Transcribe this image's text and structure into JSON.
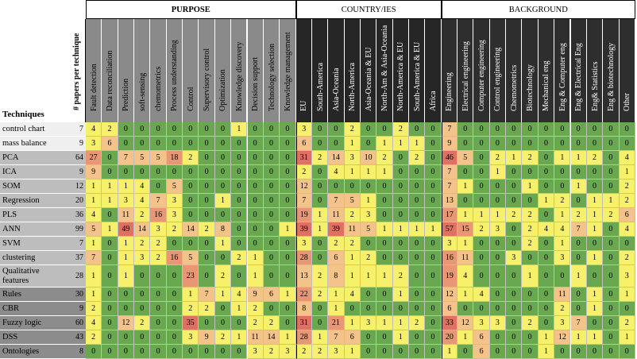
{
  "groups": [
    {
      "label": "PURPOSE",
      "bold": true
    },
    {
      "label": "COUNTRY/IES",
      "bold": false
    },
    {
      "label": "BACKGROUND",
      "bold": false
    }
  ],
  "techniques_header": "Techniques",
  "count_header": "# papers per technique",
  "columns": [
    "Fault detection",
    "Data reconciliation",
    "Prediction",
    "soft-sensing",
    "chemometrics",
    "Process understanding",
    "Control",
    "Supervisory control",
    "Optimization",
    "Knowledge discovery",
    "Decision support",
    "Technology selection",
    "Knowledge management",
    "EU",
    "South-America",
    "Asia-Oceania",
    "North-America",
    "Asia-Oceania & EU",
    "North-Am & Asia-Oceania",
    "North-America & EU",
    "South-America & EU",
    "Africa",
    "Engineering",
    "Electrical engineering",
    "Computer engineering",
    "Control engineering",
    "Chemometrics",
    "Biotechnology",
    "Mechanical eng",
    "Eng & Computer eng",
    "Eng & Electrical Eng",
    "Eng& Statistics",
    "Eng & biotechnology",
    "Other"
  ],
  "rows": [
    {
      "technique": "control chart",
      "count": 7,
      "values": [
        4,
        2,
        0,
        0,
        0,
        0,
        0,
        0,
        0,
        1,
        0,
        0,
        0,
        3,
        0,
        0,
        2,
        0,
        0,
        2,
        0,
        0,
        7,
        0,
        0,
        0,
        0,
        0,
        0,
        0,
        0,
        0,
        0,
        0
      ]
    },
    {
      "technique": "mass balance",
      "count": 9,
      "values": [
        3,
        6,
        0,
        0,
        0,
        0,
        0,
        0,
        0,
        0,
        0,
        0,
        0,
        6,
        0,
        0,
        1,
        0,
        1,
        1,
        1,
        0,
        9,
        0,
        0,
        0,
        0,
        0,
        0,
        0,
        0,
        0,
        0,
        0
      ]
    },
    {
      "technique": "PCA",
      "count": 64,
      "values": [
        27,
        0,
        7,
        5,
        5,
        18,
        2,
        0,
        0,
        0,
        0,
        0,
        0,
        31,
        2,
        14,
        3,
        10,
        2,
        0,
        2,
        0,
        46,
        5,
        0,
        2,
        1,
        2,
        0,
        1,
        1,
        2,
        0,
        4
      ]
    },
    {
      "technique": "ICA",
      "count": 9,
      "values": [
        9,
        0,
        0,
        0,
        0,
        0,
        0,
        0,
        0,
        0,
        0,
        0,
        0,
        2,
        0,
        4,
        1,
        1,
        1,
        0,
        0,
        0,
        7,
        0,
        0,
        1,
        0,
        0,
        0,
        0,
        0,
        0,
        0,
        1
      ]
    },
    {
      "technique": "SOM",
      "count": 12,
      "values": [
        1,
        1,
        1,
        4,
        0,
        5,
        0,
        0,
        0,
        0,
        0,
        0,
        0,
        12,
        0,
        0,
        0,
        0,
        0,
        0,
        0,
        0,
        7,
        1,
        0,
        0,
        0,
        1,
        0,
        0,
        1,
        0,
        0,
        2
      ]
    },
    {
      "technique": "Regression",
      "count": 20,
      "values": [
        1,
        1,
        3,
        4,
        7,
        3,
        0,
        0,
        1,
        0,
        0,
        0,
        0,
        7,
        0,
        7,
        5,
        1,
        0,
        0,
        0,
        0,
        13,
        0,
        0,
        0,
        0,
        0,
        1,
        2,
        0,
        1,
        1,
        2
      ]
    },
    {
      "technique": "PLS",
      "count": 36,
      "values": [
        4,
        0,
        11,
        2,
        16,
        3,
        0,
        0,
        0,
        0,
        0,
        0,
        0,
        19,
        1,
        11,
        2,
        3,
        0,
        0,
        0,
        0,
        17,
        1,
        1,
        1,
        2,
        2,
        0,
        1,
        2,
        1,
        2,
        6
      ]
    },
    {
      "technique": "ANN",
      "count": 99,
      "values": [
        5,
        1,
        49,
        14,
        3,
        2,
        14,
        2,
        8,
        0,
        0,
        0,
        1,
        39,
        1,
        39,
        11,
        5,
        1,
        1,
        1,
        1,
        57,
        15,
        2,
        3,
        0,
        2,
        4,
        4,
        7,
        1,
        0,
        4
      ]
    },
    {
      "technique": "SVM",
      "count": 7,
      "values": [
        1,
        0,
        1,
        2,
        2,
        0,
        0,
        0,
        1,
        0,
        0,
        0,
        0,
        3,
        0,
        2,
        2,
        0,
        0,
        0,
        0,
        0,
        3,
        1,
        0,
        0,
        0,
        2,
        0,
        1,
        0,
        0,
        0,
        0
      ]
    },
    {
      "technique": "clustering",
      "count": 37,
      "values": [
        7,
        0,
        1,
        3,
        2,
        16,
        5,
        0,
        0,
        2,
        1,
        0,
        0,
        28,
        0,
        6,
        1,
        2,
        0,
        0,
        0,
        0,
        16,
        11,
        0,
        0,
        3,
        0,
        0,
        3,
        0,
        1,
        0,
        2
      ]
    },
    {
      "technique": "Qualitative features",
      "count": 28,
      "values": [
        1,
        0,
        1,
        0,
        0,
        0,
        23,
        0,
        2,
        0,
        1,
        0,
        0,
        13,
        2,
        8,
        1,
        1,
        1,
        2,
        0,
        0,
        19,
        4,
        0,
        0,
        0,
        1,
        0,
        0,
        1,
        0,
        0,
        3
      ]
    },
    {
      "technique": "Rules",
      "count": 30,
      "values": [
        1,
        0,
        0,
        0,
        0,
        0,
        1,
        7,
        1,
        4,
        9,
        6,
        1,
        22,
        2,
        1,
        4,
        0,
        0,
        1,
        0,
        0,
        12,
        1,
        4,
        0,
        0,
        0,
        0,
        11,
        0,
        1,
        0,
        1
      ]
    },
    {
      "technique": "CBR",
      "count": 9,
      "values": [
        2,
        0,
        0,
        0,
        0,
        0,
        2,
        2,
        0,
        1,
        2,
        0,
        0,
        8,
        0,
        1,
        0,
        0,
        0,
        0,
        0,
        0,
        6,
        0,
        0,
        0,
        0,
        0,
        0,
        2,
        0,
        1,
        0,
        0
      ]
    },
    {
      "technique": "Fuzzy logic",
      "count": 60,
      "values": [
        4,
        0,
        12,
        2,
        0,
        0,
        35,
        0,
        0,
        0,
        2,
        2,
        0,
        31,
        0,
        21,
        1,
        3,
        1,
        1,
        2,
        0,
        33,
        12,
        3,
        3,
        0,
        2,
        0,
        3,
        7,
        0,
        0,
        2
      ]
    },
    {
      "technique": "DSS",
      "count": 43,
      "values": [
        2,
        0,
        0,
        0,
        0,
        0,
        3,
        9,
        2,
        1,
        11,
        14,
        1,
        28,
        1,
        7,
        6,
        0,
        0,
        1,
        0,
        0,
        20,
        1,
        6,
        0,
        0,
        0,
        1,
        12,
        1,
        1,
        0,
        1
      ]
    },
    {
      "technique": "Ontologies",
      "count": 8,
      "values": [
        0,
        0,
        0,
        0,
        0,
        0,
        0,
        0,
        0,
        0,
        3,
        2,
        3,
        2,
        2,
        3,
        1,
        0,
        0,
        0,
        0,
        0,
        1,
        0,
        6,
        0,
        0,
        0,
        1,
        0,
        0,
        0,
        0,
        0
      ]
    }
  ],
  "colors": {
    "zero": "#6aa84f",
    "low": "#f6f06a",
    "mid": "#f4c38a",
    "high": "#e89674",
    "max": "#e07062",
    "purpose_header": "#8a8a8a",
    "country_header": "#262626",
    "background_header": "#2e2e2e"
  }
}
